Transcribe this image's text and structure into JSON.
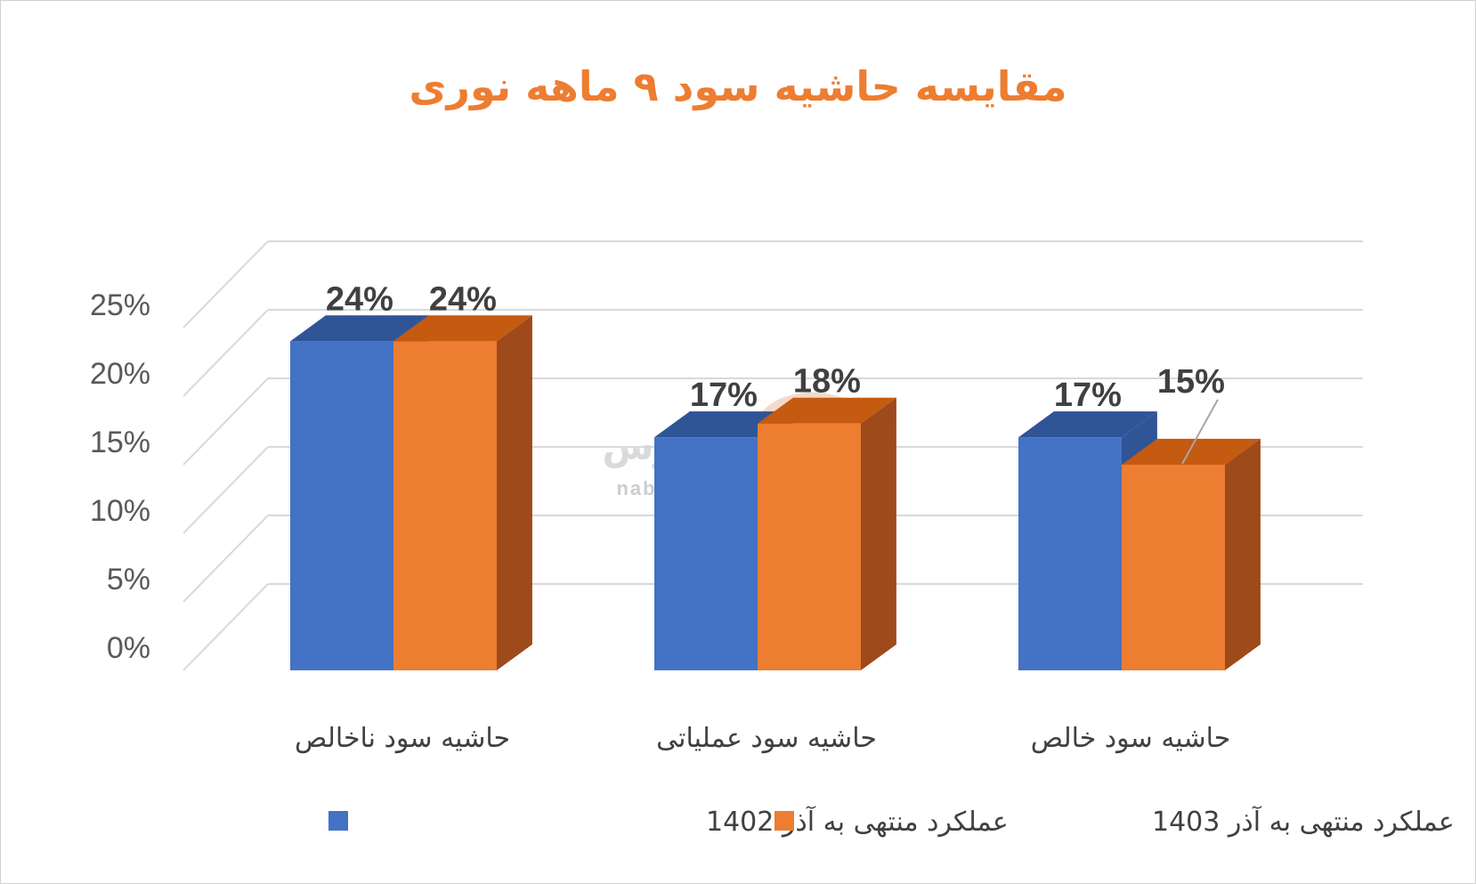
{
  "chart_data": {
    "type": "bar",
    "title": "مقایسه حاشیه سود ۹ ماهه نوری",
    "categories": [
      "حاشیه سود ناخالص",
      "حاشیه سود عملیاتی",
      "حاشیه سود خالص"
    ],
    "series": [
      {
        "name": "عملکرد منتهی به آذر 1402",
        "values": [
          0.24,
          0.17,
          0.17
        ],
        "labels": [
          "24%",
          "17%",
          "17%"
        ],
        "color": "#4472C4",
        "top_color": "#2F5597",
        "side_color": "#2F5597"
      },
      {
        "name": "عملکرد منتهی به آذر 1403",
        "values": [
          0.24,
          0.18,
          0.15
        ],
        "labels": [
          "24%",
          "18%",
          "15%"
        ],
        "color": "#ED7D31",
        "top_color": "#C55A11",
        "side_color": "#9E4A1A"
      }
    ],
    "y_ticks": [
      "0%",
      "5%",
      "10%",
      "15%",
      "20%",
      "25%"
    ],
    "ylim": [
      0,
      0.25
    ],
    "grid": true,
    "legend_position": "bottom",
    "three_d": true
  },
  "watermark": {
    "text": "نبض بورس",
    "url": "nabzebourse.com",
    "icon": "bull-icon"
  }
}
